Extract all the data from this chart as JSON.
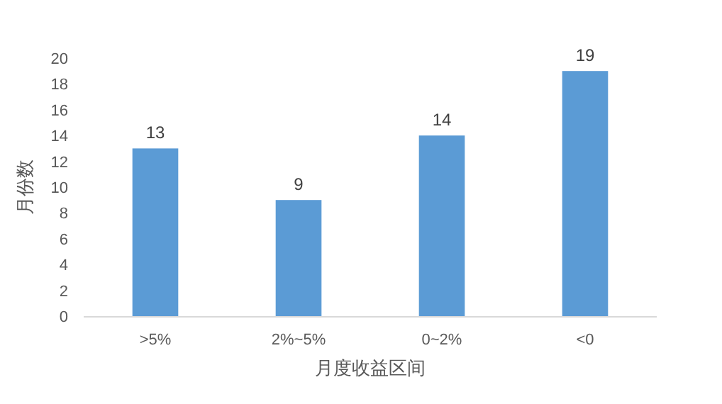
{
  "chart_data": {
    "type": "bar",
    "xlabel": "月度收益区间",
    "ylabel": "月份数",
    "categories": [
      ">5%",
      "2%~5%",
      "0~2%",
      "<0"
    ],
    "values": [
      13,
      9,
      14,
      19
    ],
    "color": "#5b9bd5",
    "ylim": [
      0,
      20
    ],
    "yticks": [
      0,
      2,
      4,
      6,
      8,
      10,
      12,
      14,
      16,
      18,
      20
    ],
    "grid": false,
    "data_labels": true
  }
}
